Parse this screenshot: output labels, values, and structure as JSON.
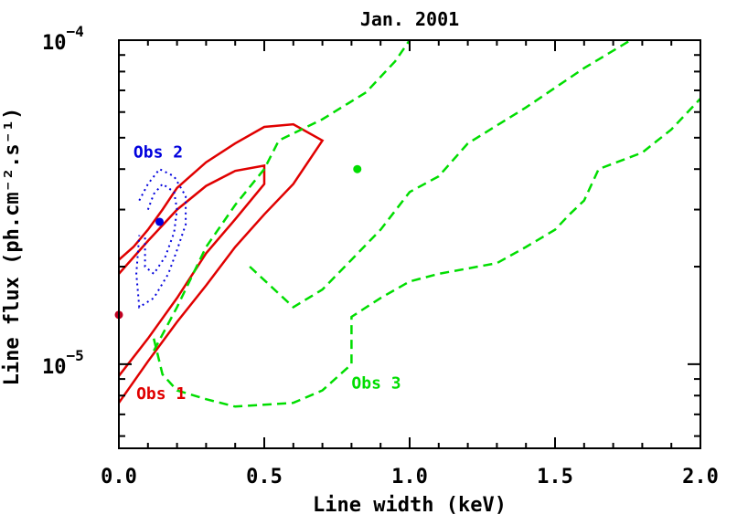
{
  "chart_data": {
    "type": "scatter",
    "title": "Jan. 2001",
    "xlabel": "Line width (keV)",
    "ylabel": "Line flux (ph.cm⁻².s⁻¹)",
    "xlim": [
      0,
      2.0
    ],
    "ylim": [
      5.5e-06,
      0.0001
    ],
    "yscale": "log",
    "grid": false,
    "x_ticks": [
      {
        "value": 0.0,
        "label": "0.0"
      },
      {
        "value": 0.5,
        "label": "0.5"
      },
      {
        "value": 1.0,
        "label": "1.0"
      },
      {
        "value": 1.5,
        "label": "1.5"
      },
      {
        "value": 2.0,
        "label": "2.0"
      }
    ],
    "y_major_ticks": [
      {
        "value": 1e-05,
        "base": "10",
        "exp": "−5"
      },
      {
        "value": 0.0001,
        "base": "10",
        "exp": "−4"
      }
    ],
    "colors": {
      "obs1": "#e00000",
      "obs2": "#0000dd",
      "obs3": "#00dd00",
      "obs1_point": "#c00020"
    },
    "series": [
      {
        "name": "Obs 1",
        "label_pos": [
          0.06,
          7.8e-06
        ],
        "color": "#e00000",
        "style": "solid",
        "best_fit": [
          0.0,
          1.42e-05
        ],
        "contours": [
          [
            [
              0.0,
              2.1e-05
            ],
            [
              0.05,
              2.3e-05
            ],
            [
              0.1,
              2.6e-05
            ],
            [
              0.15,
              3e-05
            ],
            [
              0.2,
              3.5e-05
            ],
            [
              0.3,
              4.2e-05
            ],
            [
              0.4,
              4.8e-05
            ],
            [
              0.5,
              5.4e-05
            ],
            [
              0.6,
              5.5e-05
            ],
            [
              0.7,
              4.9e-05
            ],
            [
              0.6,
              3.6e-05
            ],
            [
              0.5,
              2.9e-05
            ],
            [
              0.4,
              2.3e-05
            ],
            [
              0.3,
              1.75e-05
            ],
            [
              0.2,
              1.35e-05
            ],
            [
              0.1,
              1.02e-05
            ],
            [
              0.0,
              7.6e-06
            ]
          ],
          [
            [
              0.0,
              1.9e-05
            ],
            [
              0.1,
              2.4e-05
            ],
            [
              0.2,
              3e-05
            ],
            [
              0.3,
              3.55e-05
            ],
            [
              0.4,
              3.95e-05
            ],
            [
              0.5,
              4.1e-05
            ],
            [
              0.5,
              3.6e-05
            ],
            [
              0.4,
              2.8e-05
            ],
            [
              0.3,
              2.2e-05
            ],
            [
              0.2,
              1.6e-05
            ],
            [
              0.1,
              1.2e-05
            ],
            [
              0.0,
              9.2e-06
            ]
          ]
        ]
      },
      {
        "name": "Obs 2",
        "label_pos": [
          0.05,
          4.35e-05
        ],
        "color": "#0000dd",
        "style": "dotted",
        "best_fit": [
          0.14,
          2.75e-05
        ],
        "contours": [
          [
            [
              0.07,
              3.2e-05
            ],
            [
              0.1,
              3.6e-05
            ],
            [
              0.14,
              4e-05
            ],
            [
              0.19,
              3.8e-05
            ],
            [
              0.23,
              3.3e-05
            ],
            [
              0.23,
              2.7e-05
            ],
            [
              0.2,
              2.25e-05
            ],
            [
              0.17,
              1.9e-05
            ],
            [
              0.12,
              1.6e-05
            ],
            [
              0.07,
              1.5e-05
            ],
            [
              0.06,
              1.9e-05
            ],
            [
              0.07,
              2.5e-05
            ]
          ],
          [
            [
              0.1,
              3e-05
            ],
            [
              0.12,
              3.35e-05
            ],
            [
              0.15,
              3.6e-05
            ],
            [
              0.19,
              3.4e-05
            ],
            [
              0.2,
              3e-05
            ],
            [
              0.19,
              2.55e-05
            ],
            [
              0.16,
              2.15e-05
            ],
            [
              0.12,
              1.9e-05
            ],
            [
              0.09,
              2e-05
            ],
            [
              0.09,
              2.5e-05
            ]
          ]
        ]
      },
      {
        "name": "Obs 3",
        "label_pos": [
          0.8,
          8.4e-06
        ],
        "color": "#00dd00",
        "style": "dashed",
        "best_fit": [
          0.82,
          4e-05
        ],
        "contours": [
          [
            [
              0.12,
              1.1e-05
            ],
            [
              0.2,
              1.5e-05
            ],
            [
              0.3,
              2.3e-05
            ],
            [
              0.4,
              3.1e-05
            ],
            [
              0.5,
              4e-05
            ],
            [
              0.55,
              4.9e-05
            ],
            [
              0.7,
              5.7e-05
            ],
            [
              0.85,
              6.9e-05
            ],
            [
              0.95,
              8.6e-05
            ],
            [
              1.0,
              0.0001
            ]
          ],
          [
            [
              0.12,
              1.2e-05
            ],
            [
              0.15,
              9.3e-06
            ],
            [
              0.2,
              8.3e-06
            ],
            [
              0.3,
              7.8e-06
            ],
            [
              0.4,
              7.4e-06
            ],
            [
              0.6,
              7.6e-06
            ],
            [
              0.7,
              8.3e-06
            ],
            [
              0.8,
              1e-05
            ],
            [
              0.8,
              1.4e-05
            ],
            [
              0.9,
              1.6e-05
            ],
            [
              1.0,
              1.8e-05
            ],
            [
              1.1,
              1.9e-05
            ],
            [
              1.3,
              2.05e-05
            ],
            [
              1.4,
              2.3e-05
            ],
            [
              1.5,
              2.6e-05
            ],
            [
              1.55,
              2.9e-05
            ],
            [
              1.6,
              3.2e-05
            ],
            [
              1.65,
              4e-05
            ],
            [
              1.8,
              4.5e-05
            ],
            [
              1.9,
              5.3e-05
            ],
            [
              2.0,
              6.6e-05
            ]
          ],
          [
            [
              0.45,
              2e-05
            ],
            [
              0.6,
              1.5e-05
            ],
            [
              0.7,
              1.7e-05
            ],
            [
              0.8,
              2.1e-05
            ],
            [
              0.9,
              2.6e-05
            ],
            [
              1.0,
              3.4e-05
            ],
            [
              1.1,
              3.8e-05
            ],
            [
              1.2,
              4.8e-05
            ],
            [
              1.4,
              6.2e-05
            ],
            [
              1.6,
              8.2e-05
            ],
            [
              1.76,
              0.0001
            ]
          ]
        ]
      }
    ]
  }
}
